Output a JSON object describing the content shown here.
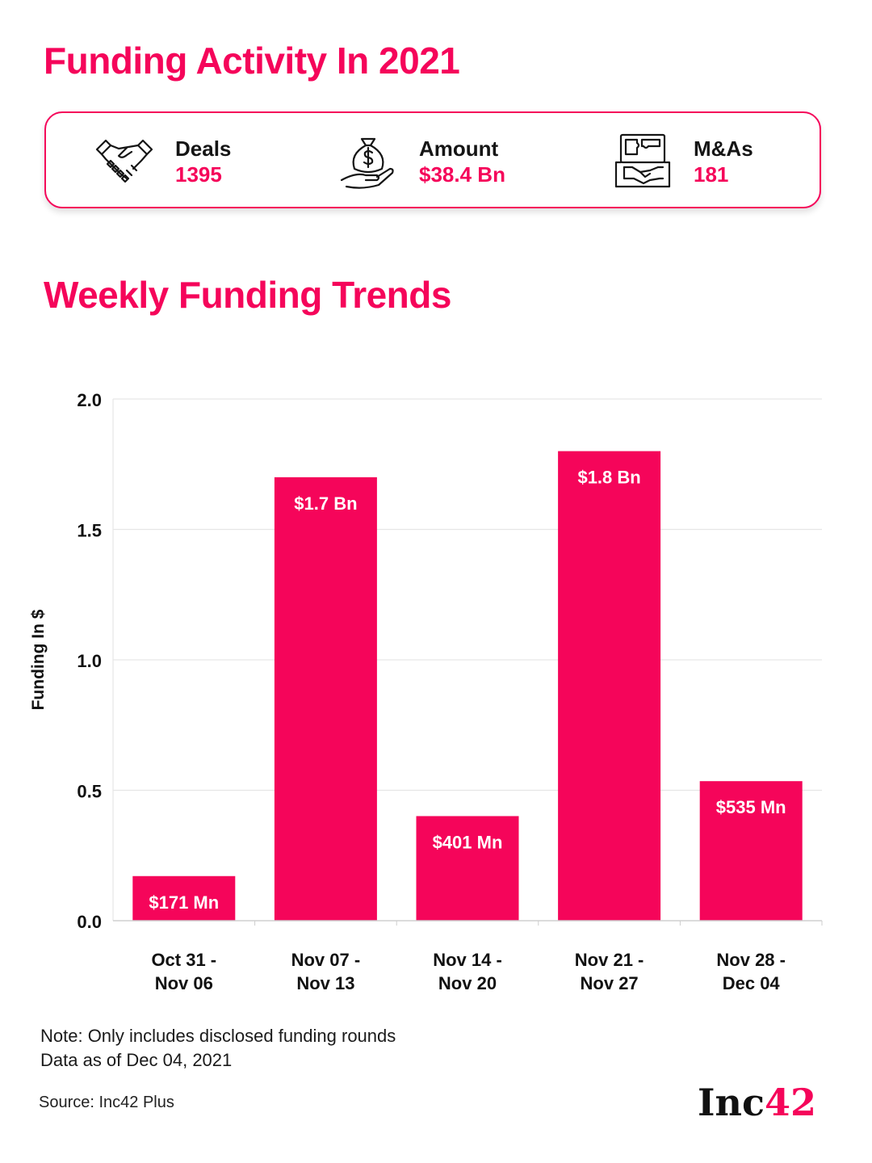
{
  "header": {
    "title": "Funding Activity In 2021"
  },
  "stats": [
    {
      "icon": "handshake-icon",
      "label": "Deals",
      "value": "1395"
    },
    {
      "icon": "money-bag-hand-icon",
      "label": "Amount",
      "value": "$38.4 Bn"
    },
    {
      "icon": "puzzle-handshake-icon",
      "label": "M&As",
      "value": "181"
    }
  ],
  "section": {
    "title": "Weekly Funding Trends"
  },
  "chart_data": {
    "type": "bar",
    "categories": [
      [
        "Oct 31 -",
        "Nov 06"
      ],
      [
        "Nov 07 -",
        "Nov 13"
      ],
      [
        "Nov 14 -",
        "Nov 20"
      ],
      [
        "Nov 21 -",
        "Nov 27"
      ],
      [
        "Nov 28 -",
        "Dec 04"
      ]
    ],
    "values": [
      0.171,
      1.7,
      0.401,
      1.8,
      0.535
    ],
    "data_labels": [
      "$171 Mn",
      "$1.7 Bn",
      "$401 Mn",
      "$1.8 Bn",
      "$535 Mn"
    ],
    "ylabel": "Funding In $",
    "yticks": [
      "0.0",
      "0.5",
      "1.0",
      "1.5",
      "2.0"
    ],
    "ylim": [
      0,
      2.0
    ],
    "grid": true,
    "bar_color": "#f5055a"
  },
  "footer": {
    "note1": "Note: Only includes disclosed funding rounds",
    "note2": "Data as of Dec 04, 2021",
    "source": "Source: Inc42 Plus",
    "brand_text": "Inc",
    "brand_num": "42"
  },
  "colors": {
    "accent": "#f5055a",
    "text": "#111111",
    "grid": "#e6e6e6"
  }
}
